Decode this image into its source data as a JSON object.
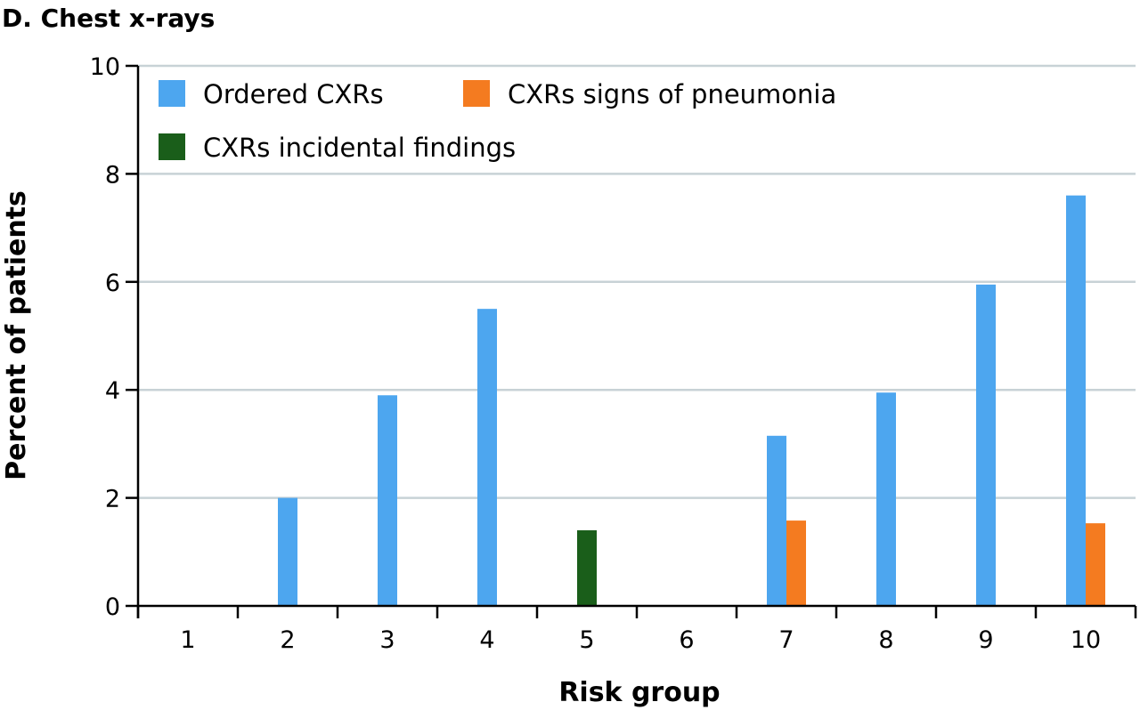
{
  "chart_data": {
    "type": "bar",
    "title": "D. Chest x-rays",
    "xlabel": "Risk group",
    "ylabel": "Percent of patients",
    "categories": [
      "1",
      "2",
      "3",
      "4",
      "5",
      "6",
      "7",
      "8",
      "9",
      "10"
    ],
    "ylim": [
      0,
      10
    ],
    "yticks": [
      "0",
      "2",
      "4",
      "6",
      "8",
      "10"
    ],
    "grid": "horizontal",
    "legend_position": "top-left",
    "series": [
      {
        "name": "Ordered CXRs",
        "color": "#4da6ef",
        "values": [
          0,
          2.0,
          3.9,
          5.5,
          0,
          0,
          3.15,
          3.95,
          5.95,
          7.6
        ]
      },
      {
        "name": "CXRs signs of pneumonia",
        "color": "#f47b20",
        "values": [
          0,
          0,
          0,
          0,
          0,
          0,
          1.58,
          0,
          0,
          1.53
        ]
      },
      {
        "name": "CXRs incidental findings",
        "color": "#1a5e1a",
        "values": [
          0,
          0,
          0,
          0,
          1.4,
          0,
          0,
          0,
          0,
          0
        ]
      }
    ]
  }
}
